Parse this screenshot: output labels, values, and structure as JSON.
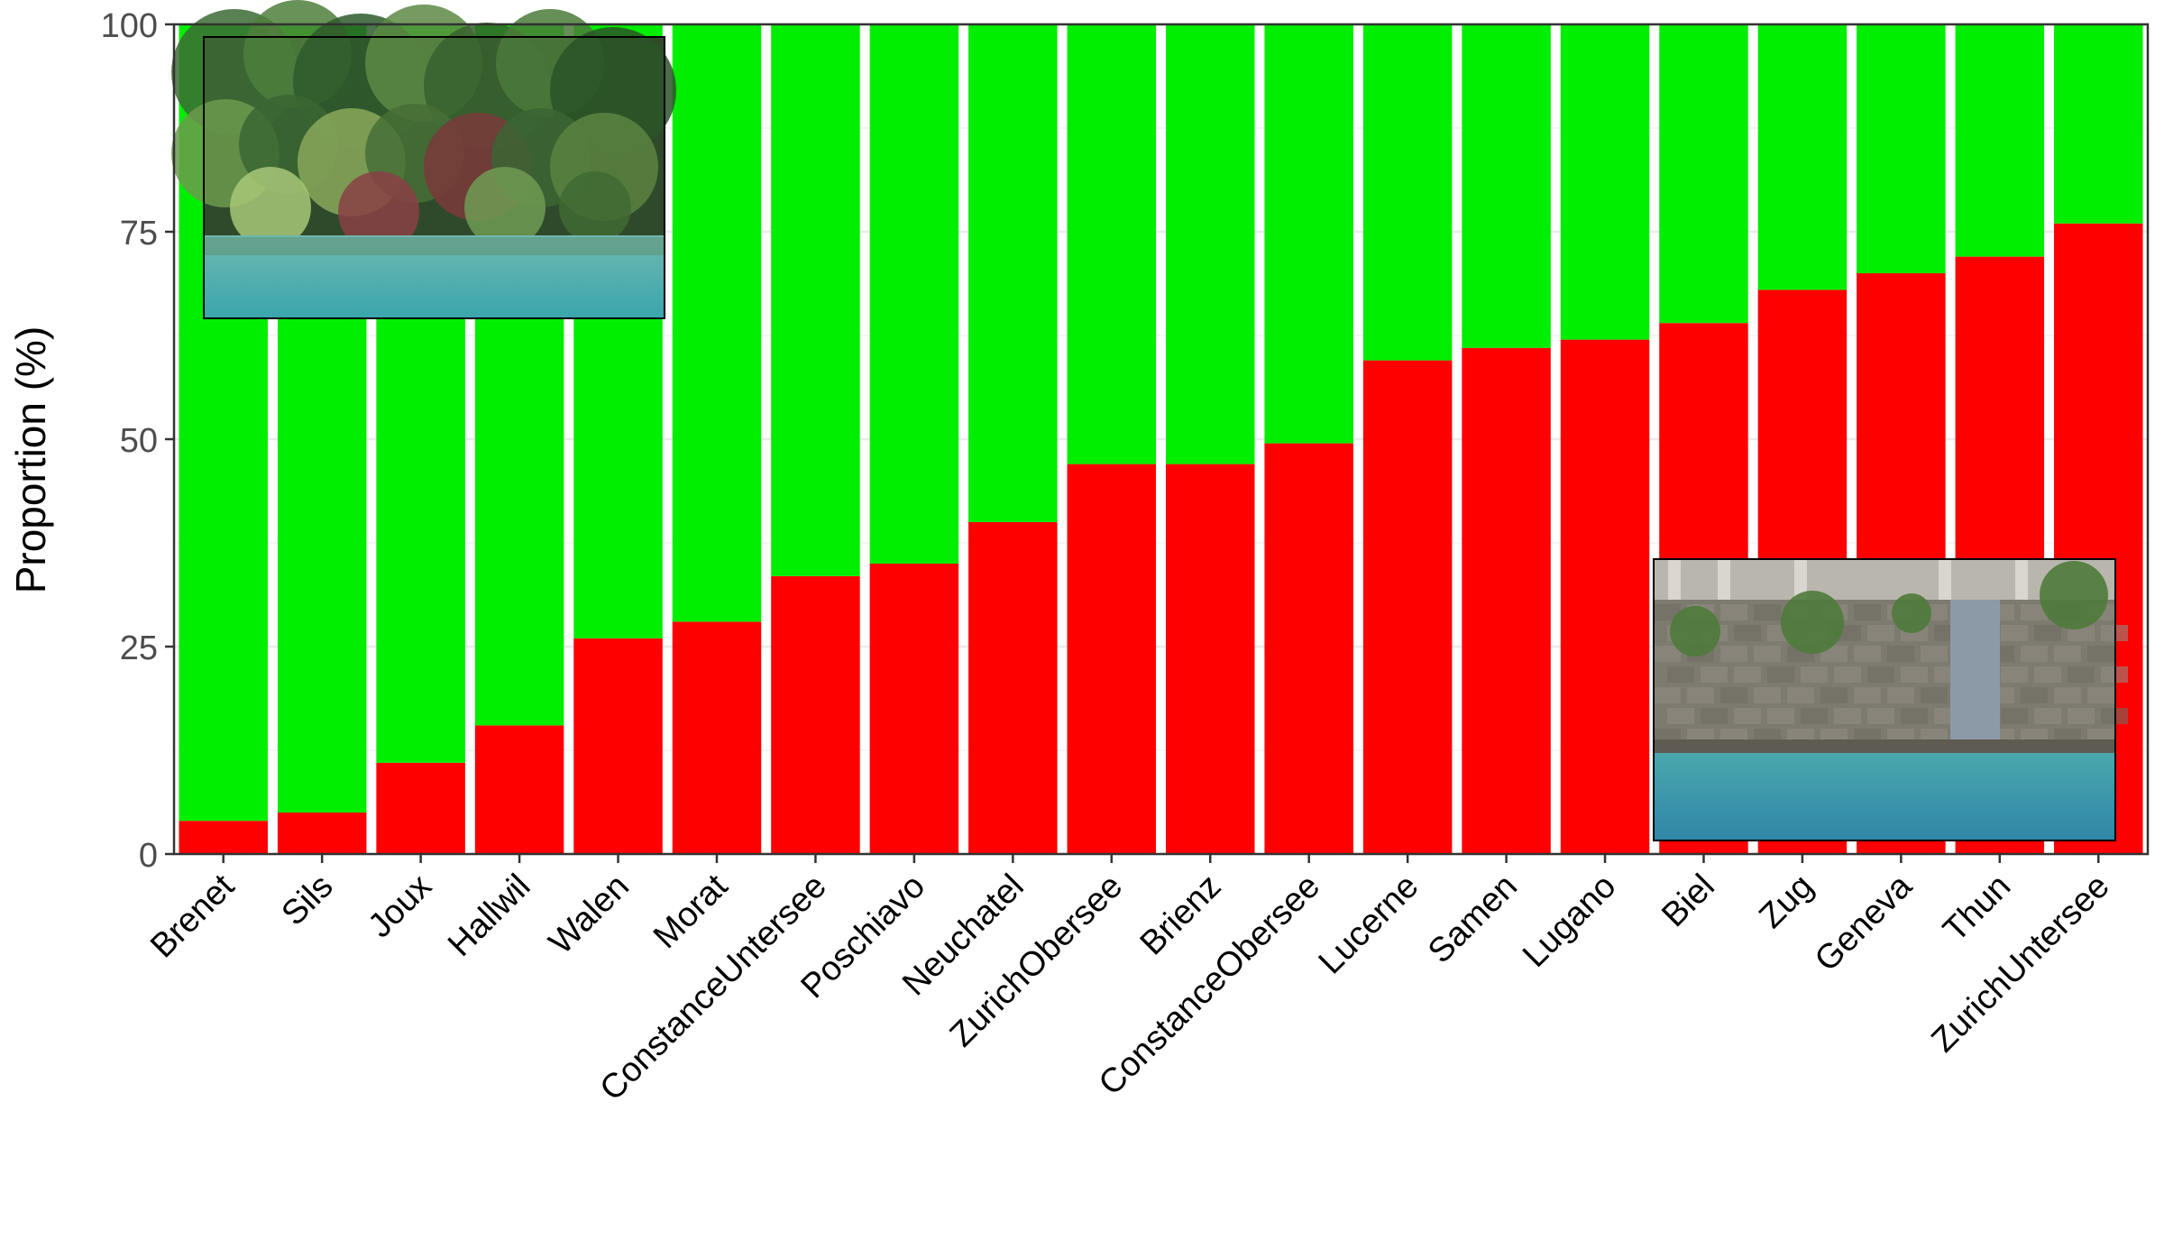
{
  "chart_data": {
    "type": "bar",
    "stacked": true,
    "ylabel": "Proportion (%)",
    "xlabel": "",
    "ylim": [
      0,
      100
    ],
    "yticks": [
      0,
      25,
      50,
      75,
      100
    ],
    "grid": true,
    "legend": "none",
    "categories": [
      "Brenet",
      "Sils",
      "Joux",
      "Hallwil",
      "Walen",
      "Morat",
      "ConstanceUntersee",
      "Poschiavo",
      "Neuchatel",
      "ZurichObersee",
      "Brienz",
      "ConstanceObersee",
      "Lucerne",
      "Samen",
      "Lugano",
      "Biel",
      "Zug",
      "Geneva",
      "Thun",
      "ZurichUntersee"
    ],
    "series": [
      {
        "color": "#ff0000",
        "values": [
          4,
          5,
          11,
          15.5,
          26,
          28,
          33.5,
          35,
          40,
          47,
          47,
          49.5,
          59.5,
          61,
          62,
          64,
          68,
          70,
          72,
          76
        ]
      },
      {
        "color": "#00ee00",
        "values": [
          96,
          95,
          89,
          84.5,
          74,
          72,
          66.5,
          65,
          60,
          53,
          53,
          50.5,
          40.5,
          39,
          38,
          36,
          32,
          30,
          28,
          24
        ]
      }
    ]
  },
  "insets": [
    {
      "name": "photo-inset-vegetated-shore",
      "placement": "top-left"
    },
    {
      "name": "photo-inset-stone-wall-shore",
      "placement": "bottom-right"
    }
  ]
}
